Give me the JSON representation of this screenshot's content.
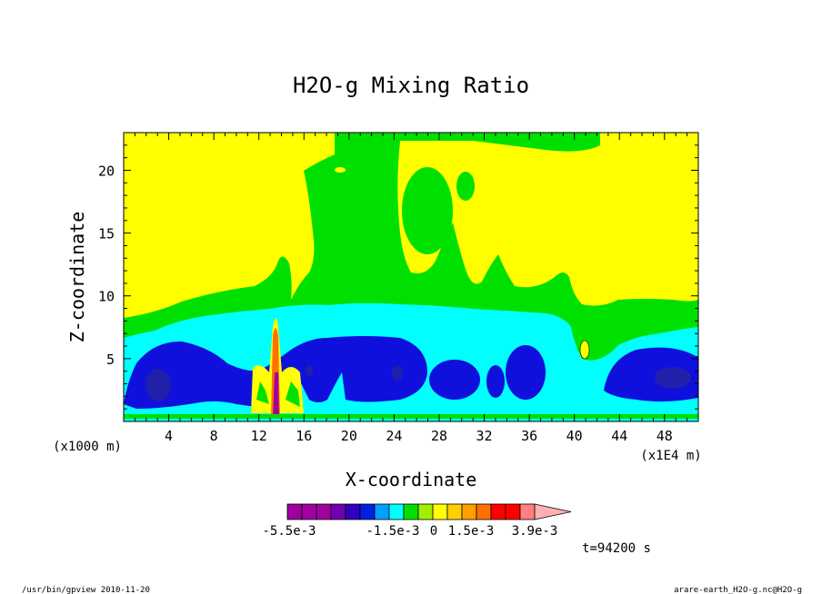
{
  "chart_data": {
    "type": "heatmap",
    "title": "H2O-g Mixing Ratio",
    "xlabel": "X-coordinate",
    "ylabel": "Z-coordinate",
    "x_unit": "(x1000 m)",
    "x_multiplier": "(x1E4 m)",
    "x_ticks": [
      "4",
      "8",
      "12",
      "16",
      "20",
      "24",
      "28",
      "32",
      "36",
      "40",
      "44",
      "48"
    ],
    "y_ticks": [
      "5",
      "10",
      "15",
      "20"
    ],
    "xlim": [
      0,
      51
    ],
    "ylim": [
      0,
      23
    ],
    "colorbar": {
      "colors": [
        "#a000a0",
        "#a000a0",
        "#a000a0",
        "#7000b0",
        "#3000c0",
        "#0020e0",
        "#00a0ff",
        "#00ffff",
        "#00e000",
        "#a0f000",
        "#ffff00",
        "#ffd000",
        "#ffa000",
        "#ff7000",
        "#ff0000",
        "#ff0000",
        "#ff8080",
        "#ffb0b0"
      ],
      "labels": [
        "-5.5e-3",
        "-1.5e-3",
        "0",
        "1.5e-3",
        "3.9e-3"
      ]
    },
    "time_label": "t=94200 s"
  },
  "footer": {
    "left": "/usr/bin/gpview  2010-11-20",
    "right": "arare-earth_H2O-g.nc@H2O-g"
  },
  "field_colors": {
    "background": "#ffff00",
    "level1": "#00e000",
    "level2": "#00ffff",
    "level3": "#1010dd",
    "level4": "#2020aa"
  }
}
